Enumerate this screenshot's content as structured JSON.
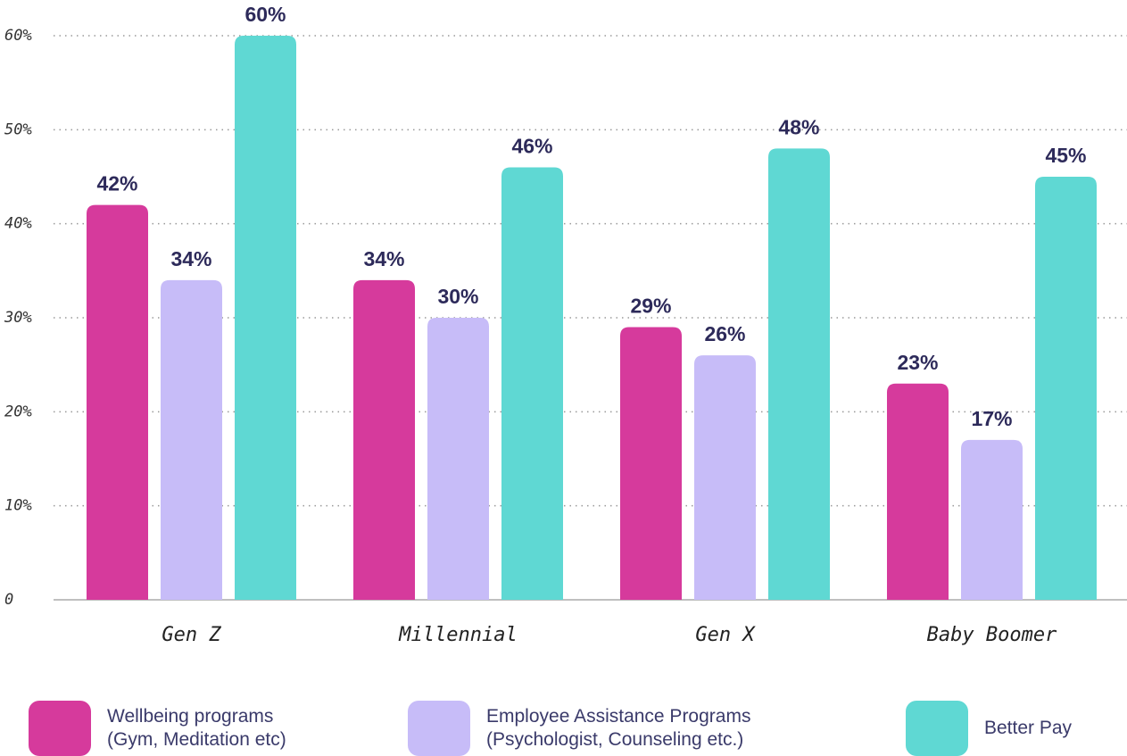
{
  "chart_data": {
    "type": "bar",
    "categories": [
      "Gen Z",
      "Millennial",
      "Gen X",
      "Baby Boomer"
    ],
    "series": [
      {
        "name": "Wellbeing programs\n(Gym, Meditation etc)",
        "color": "#d63a9c",
        "values": [
          42,
          34,
          29,
          23
        ],
        "value_labels": [
          "42%",
          "34%",
          "29%",
          "23%"
        ]
      },
      {
        "name": "Employee Assistance Programs\n(Psychologist, Counseling etc.)",
        "color": "#c7bcf8",
        "values": [
          34,
          30,
          26,
          17
        ],
        "value_labels": [
          "34%",
          "30%",
          "26%",
          "17%"
        ]
      },
      {
        "name": "Better Pay",
        "color": "#5fd8d3",
        "values": [
          60,
          46,
          48,
          45
        ],
        "value_labels": [
          "60%",
          "46%",
          "48%",
          "45%"
        ]
      }
    ],
    "ylim": [
      0,
      60
    ],
    "yticks": [
      0,
      {
        "value": 10,
        "label": "10%"
      },
      {
        "value": 20,
        "label": "20%"
      },
      {
        "value": 30,
        "label": "30%"
      },
      {
        "value": 40,
        "label": "40%"
      },
      {
        "value": 50,
        "label": "50%"
      },
      {
        "value": 60,
        "label": "60%"
      }
    ],
    "grid": true,
    "legend": "bottom"
  }
}
